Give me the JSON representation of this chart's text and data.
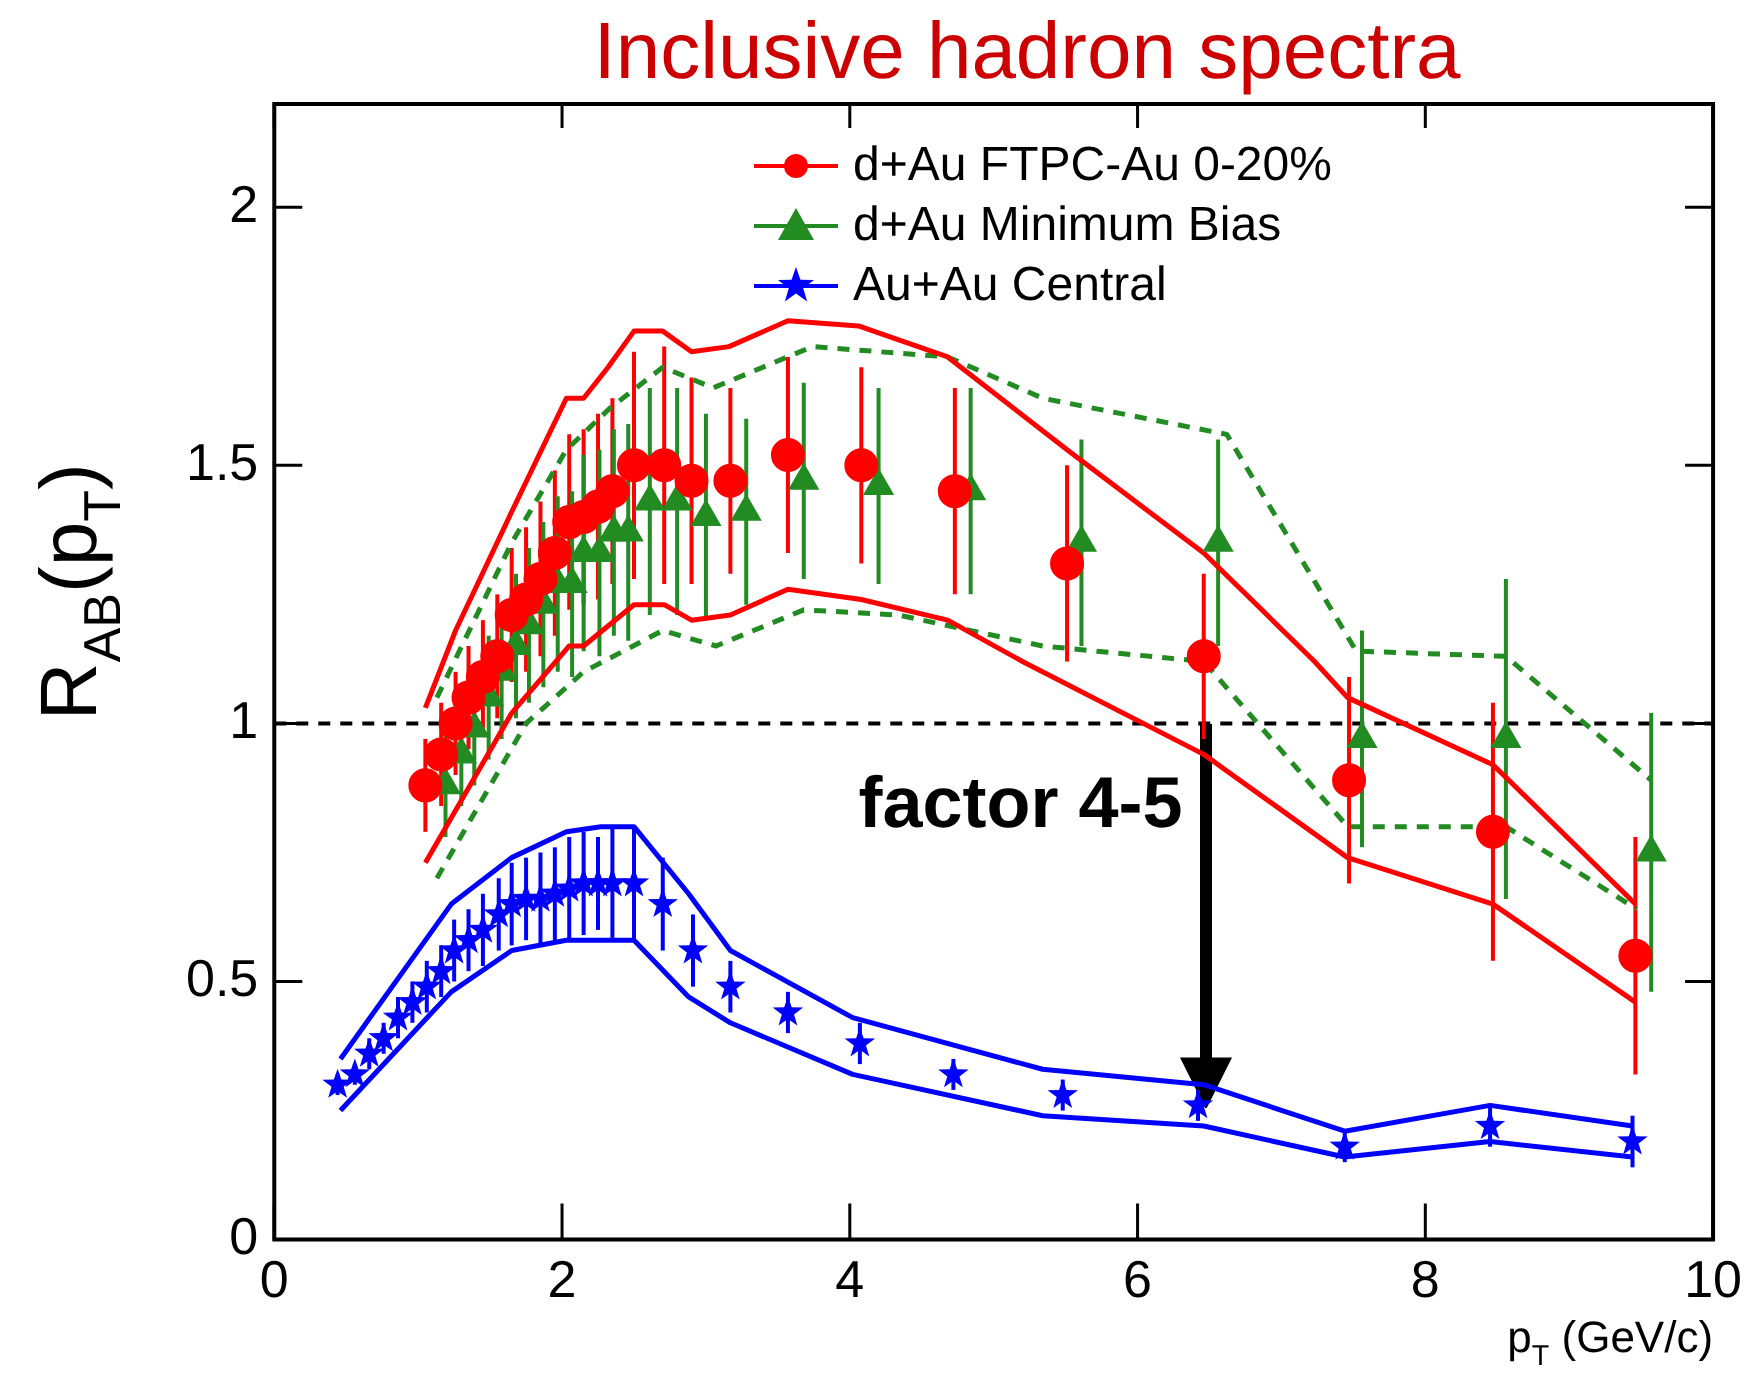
{
  "chart_data": {
    "type": "scatter",
    "title": "Inclusive hadron spectra",
    "xlabel": "p$_{T}$ (GeV/c)",
    "ylabel": "R$_{AB}$(p$_{T}$)",
    "xlim": [
      0,
      10
    ],
    "xticks": [
      0,
      2,
      4,
      6,
      8,
      10
    ],
    "ylim": [
      0,
      2.2
    ],
    "yticks": [
      0,
      0.5,
      1,
      1.5,
      2
    ],
    "grid": false,
    "legend": "top right",
    "annotations": [
      "factor 4-5"
    ],
    "ref_lines": [
      {
        "axis": "y",
        "value": 1,
        "label": null,
        "color": "#000000",
        "line_style": "dashed"
      }
    ],
    "series": [
      {
        "name": "d+Au FTPC-Au 0-20%",
        "color": "#ff0000",
        "marker": "circle",
        "x": [
          1.05,
          1.16,
          1.26,
          1.35,
          1.45,
          1.55,
          1.65,
          1.75,
          1.85,
          1.95,
          2.05,
          2.15,
          2.25,
          2.35,
          2.5,
          2.71,
          2.9,
          3.17,
          3.57,
          4.08,
          4.73,
          5.51,
          6.46,
          7.47,
          8.47,
          9.46
        ],
        "values": [
          0.88,
          0.94,
          1.0,
          1.05,
          1.09,
          1.13,
          1.21,
          1.24,
          1.28,
          1.33,
          1.39,
          1.4,
          1.42,
          1.45,
          1.5,
          1.5,
          1.47,
          1.47,
          1.52,
          1.5,
          1.45,
          1.31,
          1.13,
          0.89,
          0.79,
          0.55
        ],
        "errors": [
          0.09,
          0.1,
          0.1,
          0.1,
          0.11,
          0.12,
          0.13,
          0.14,
          0.15,
          0.16,
          0.17,
          0.17,
          0.18,
          0.18,
          0.22,
          0.23,
          0.2,
          0.18,
          0.19,
          0.19,
          0.2,
          0.19,
          0.16,
          0.2,
          0.25,
          0.23
        ]
      },
      {
        "name": "d+Au Minimum Bias",
        "color": "#228b22",
        "marker": "triangle",
        "x": [
          1.19,
          1.3,
          1.39,
          1.49,
          1.58,
          1.68,
          1.77,
          1.87,
          1.97,
          2.07,
          2.15,
          2.26,
          2.36,
          2.46,
          2.61,
          2.8,
          3.0,
          3.28,
          3.68,
          4.2,
          4.84,
          5.61,
          6.56,
          7.56,
          8.56,
          9.57
        ],
        "values": [
          0.88,
          0.94,
          0.99,
          1.05,
          1.1,
          1.15,
          1.19,
          1.23,
          1.27,
          1.27,
          1.33,
          1.33,
          1.37,
          1.37,
          1.43,
          1.43,
          1.4,
          1.41,
          1.47,
          1.46,
          1.45,
          1.35,
          1.35,
          0.97,
          0.97,
          0.75
        ],
        "errors": [
          0.1,
          0.1,
          0.11,
          0.12,
          0.13,
          0.14,
          0.15,
          0.16,
          0.17,
          0.18,
          0.19,
          0.2,
          0.2,
          0.21,
          0.22,
          0.22,
          0.2,
          0.18,
          0.19,
          0.19,
          0.2,
          0.2,
          0.2,
          0.21,
          0.31,
          0.27
        ]
      },
      {
        "name": "Au+Au Central",
        "color": "#0000ff",
        "marker": "star",
        "x": [
          0.44,
          0.56,
          0.66,
          0.76,
          0.86,
          0.96,
          1.06,
          1.16,
          1.25,
          1.35,
          1.45,
          1.56,
          1.65,
          1.75,
          1.85,
          1.95,
          2.05,
          2.15,
          2.25,
          2.35,
          2.5,
          2.7,
          2.91,
          3.17,
          3.57,
          4.07,
          4.72,
          5.48,
          6.42,
          7.44,
          8.45,
          9.44
        ],
        "values": [
          0.3,
          0.32,
          0.36,
          0.39,
          0.43,
          0.46,
          0.49,
          0.52,
          0.56,
          0.58,
          0.6,
          0.63,
          0.65,
          0.66,
          0.66,
          0.67,
          0.68,
          0.69,
          0.69,
          0.69,
          0.69,
          0.65,
          0.56,
          0.49,
          0.44,
          0.38,
          0.32,
          0.28,
          0.26,
          0.18,
          0.22,
          0.19
        ],
        "errors": [
          0.02,
          0.02,
          0.03,
          0.03,
          0.04,
          0.04,
          0.05,
          0.05,
          0.06,
          0.06,
          0.07,
          0.07,
          0.08,
          0.08,
          0.09,
          0.09,
          0.1,
          0.1,
          0.09,
          0.11,
          0.11,
          0.09,
          0.07,
          0.05,
          0.04,
          0.04,
          0.03,
          0.03,
          0.03,
          0.03,
          0.04,
          0.05
        ]
      },
      {
        "type": "line",
        "color": "#ff0000",
        "line_style": "solid",
        "marker": "none",
        "x": [
          1.05,
          1.26,
          1.65,
          2.03,
          2.15,
          2.32,
          2.5,
          2.7,
          2.9,
          3.16,
          3.57,
          4.06,
          4.68,
          5.51,
          6.46,
          7.23,
          7.46,
          8.47,
          9.46
        ],
        "values": [
          1.03,
          1.18,
          1.41,
          1.63,
          1.63,
          1.69,
          1.76,
          1.76,
          1.72,
          1.73,
          1.78,
          1.77,
          1.71,
          1.53,
          1.33,
          1.12,
          1.05,
          0.92,
          0.65
        ]
      },
      {
        "type": "line",
        "color": "#ff0000",
        "line_style": "solid",
        "marker": "none",
        "x": [
          1.05,
          1.65,
          2.05,
          2.15,
          2.5,
          2.71,
          2.9,
          3.17,
          3.57,
          4.08,
          4.68,
          5.2,
          6.46,
          7.46,
          8.47,
          9.46
        ],
        "values": [
          0.73,
          1.02,
          1.15,
          1.15,
          1.23,
          1.23,
          1.2,
          1.21,
          1.26,
          1.24,
          1.2,
          1.12,
          0.94,
          0.74,
          0.65,
          0.46
        ]
      },
      {
        "type": "line",
        "color": "#228b22",
        "line_style": "dashed",
        "marker": "none",
        "x": [
          1.13,
          1.65,
          2.03,
          2.33,
          2.7,
          3.05,
          3.74,
          4.68,
          5.34,
          6.62,
          7.52,
          8.56,
          9.57
        ],
        "values": [
          1.05,
          1.35,
          1.53,
          1.61,
          1.69,
          1.65,
          1.73,
          1.71,
          1.63,
          1.56,
          1.14,
          1.13,
          0.89
        ]
      },
      {
        "type": "line",
        "color": "#228b22",
        "line_style": "dashed",
        "marker": "none",
        "x": [
          1.13,
          1.75,
          2.15,
          2.7,
          3.07,
          3.68,
          4.34,
          5.34,
          6.46,
          7.46,
          8.56,
          9.47
        ],
        "values": [
          0.7,
          1.0,
          1.1,
          1.18,
          1.15,
          1.22,
          1.21,
          1.15,
          1.12,
          0.8,
          0.8,
          0.64
        ]
      },
      {
        "type": "line",
        "color": "#0000ff",
        "line_style": "solid",
        "marker": "none",
        "x": [
          0.46,
          1.23,
          1.65,
          2.03,
          2.27,
          2.5,
          2.88,
          3.17,
          4.02,
          5.34,
          6.46,
          7.44,
          8.45,
          9.44
        ],
        "values": [
          0.35,
          0.65,
          0.74,
          0.79,
          0.8,
          0.8,
          0.67,
          0.56,
          0.43,
          0.33,
          0.3,
          0.21,
          0.26,
          0.22
        ]
      },
      {
        "type": "line",
        "color": "#0000ff",
        "line_style": "solid",
        "marker": "none",
        "x": [
          0.46,
          1.23,
          1.65,
          2.03,
          2.5,
          2.88,
          3.17,
          4.02,
          5.34,
          6.46,
          7.44,
          8.45,
          9.44
        ],
        "values": [
          0.25,
          0.48,
          0.56,
          0.58,
          0.58,
          0.47,
          0.42,
          0.32,
          0.24,
          0.22,
          0.16,
          0.19,
          0.16
        ]
      }
    ]
  }
}
